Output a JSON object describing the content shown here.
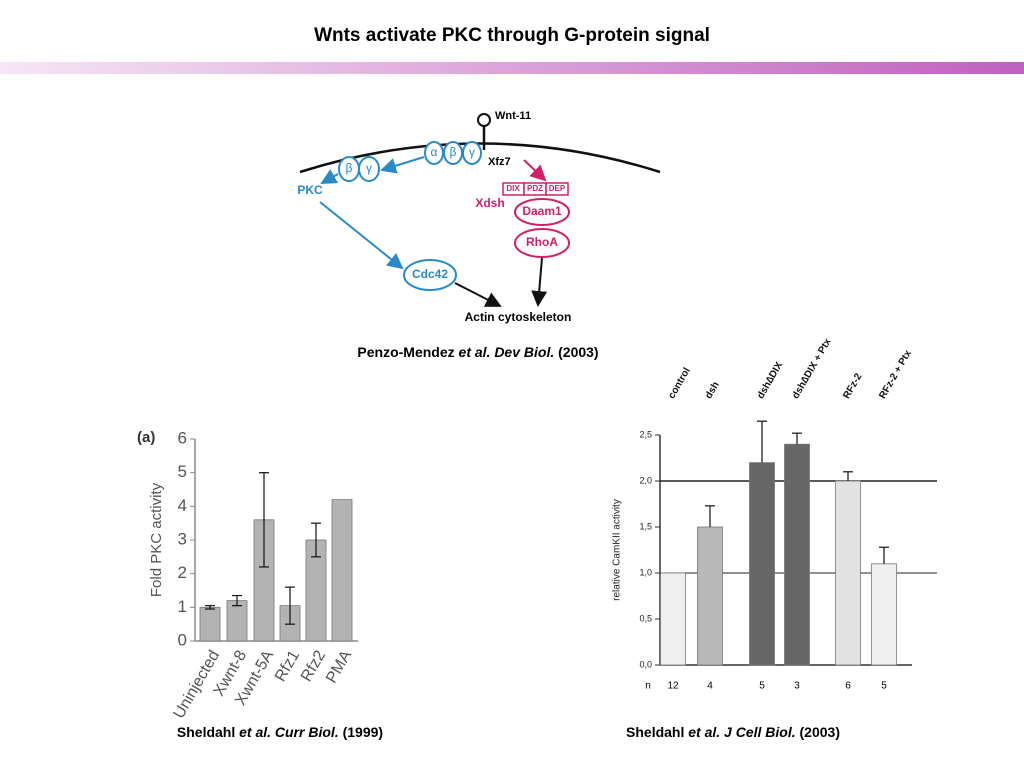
{
  "title": "Wnts activate PKC through G-protein signal",
  "diagram": {
    "ligand": "Wnt-11",
    "receptor": "Xfz7",
    "g_alpha": "α",
    "g_beta": "β",
    "g_gamma": "γ",
    "free_beta": "β",
    "free_gamma": "γ",
    "pkc": "PKC",
    "cdc42": "Cdc42",
    "dix": "DIX",
    "pdz": "PDZ",
    "dep": "DEP",
    "xdsh": "Xdsh",
    "daam1": "Daam1",
    "rhoa": "RhoA",
    "actin": "Actin cytoskeleton"
  },
  "diagram_caption": [
    "Penzo-Mendez ",
    "et al. Dev Biol.",
    " (2003)"
  ],
  "chart_captions": [
    [
      "Sheldahl ",
      "et al. Curr Biol.",
      " (1999)"
    ],
    [
      "Sheldahl ",
      "et al. J Cell Biol.",
      " (2003)"
    ]
  ],
  "chart_data": [
    {
      "type": "bar",
      "panel_label": "(a)",
      "ylabel": "Fold PKC activity",
      "categories": [
        "Uninjected",
        "Xwnt-8",
        "Xwnt-5A",
        "Rfz1",
        "Rfz2",
        "PMA"
      ],
      "values": [
        1.0,
        1.2,
        3.6,
        1.05,
        3.0,
        4.2
      ],
      "errors": [
        0.05,
        0.15,
        1.4,
        0.55,
        0.5,
        null
      ],
      "color": "#b3b3b3",
      "ylim": [
        0,
        6
      ],
      "yticks": [
        0,
        1,
        2,
        3,
        4,
        5,
        6
      ]
    },
    {
      "type": "bar",
      "ylabel": "relative CamKII activity",
      "categories": [
        "control",
        "dsh",
        "dsh∆DIX",
        "dsh∆DIX + Ptx",
        "RFz-2",
        "RFz-2 + Ptx"
      ],
      "values": [
        1.0,
        1.5,
        2.2,
        2.4,
        2.0,
        1.1
      ],
      "errors": [
        null,
        0.23,
        0.45,
        0.12,
        0.1,
        0.18
      ],
      "colors": [
        "#efefef",
        "#b8b8b8",
        "#666666",
        "#666666",
        "#e2e2e2",
        "#efefef"
      ],
      "ylim": [
        0,
        2.5
      ],
      "yticks": [
        {
          "value": 0,
          "label": "0,0"
        },
        {
          "value": 0.5,
          "label": "0,5"
        },
        {
          "value": 1,
          "label": "1,0"
        },
        {
          "value": 1.5,
          "label": "1,5"
        },
        {
          "value": 2,
          "label": "2,0"
        },
        {
          "value": 2.5,
          "label": "2,5"
        }
      ],
      "reference_lines": [
        1,
        2
      ],
      "n_label": "n",
      "n_values": [
        12,
        4,
        5,
        3,
        6,
        5
      ]
    }
  ]
}
